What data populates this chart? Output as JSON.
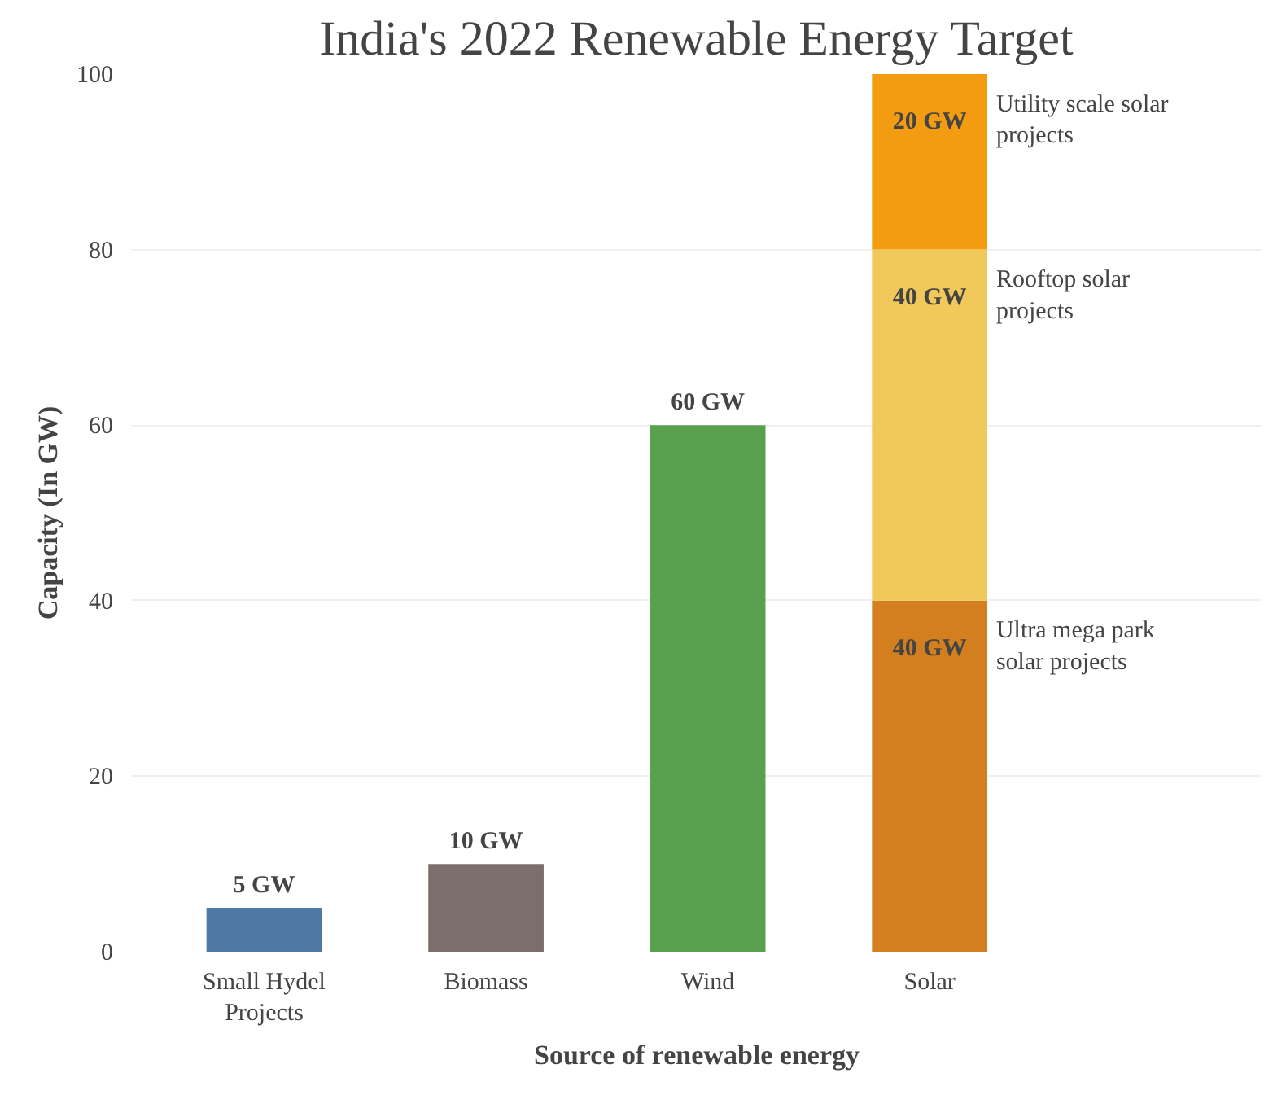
{
  "chart_data": {
    "type": "bar",
    "title": "India's 2022 Renewable Energy Target",
    "xlabel": "Source of renewable energy",
    "ylabel": "Capacity (In GW)",
    "categories": [
      "Small Hydel Projects",
      "Biomass",
      "Wind",
      "Solar"
    ],
    "stacked": true,
    "ylim": [
      0,
      100
    ],
    "yticks": [
      0,
      20,
      40,
      60,
      80,
      100
    ],
    "grid": "y",
    "series": [
      {
        "name": "Ultra mega park solar projects",
        "color": "#d37e1f",
        "colors": [
          "#4e79a7",
          "#7a6f6b",
          "#59a14f",
          "#d37e1f"
        ],
        "values": [
          5,
          10,
          60,
          40
        ],
        "value_labels": [
          "5 GW",
          "10 GW",
          "60 GW",
          "40 GW"
        ]
      },
      {
        "name": "Rooftop solar projects",
        "color": "#f0c95a",
        "values": [
          null,
          null,
          null,
          40
        ],
        "value_labels": [
          null,
          null,
          null,
          "40 GW"
        ]
      },
      {
        "name": "Utility scale solar projects",
        "color": "#f39c12",
        "values": [
          null,
          null,
          null,
          20
        ],
        "value_labels": [
          null,
          null,
          null,
          "20 GW"
        ]
      }
    ]
  }
}
